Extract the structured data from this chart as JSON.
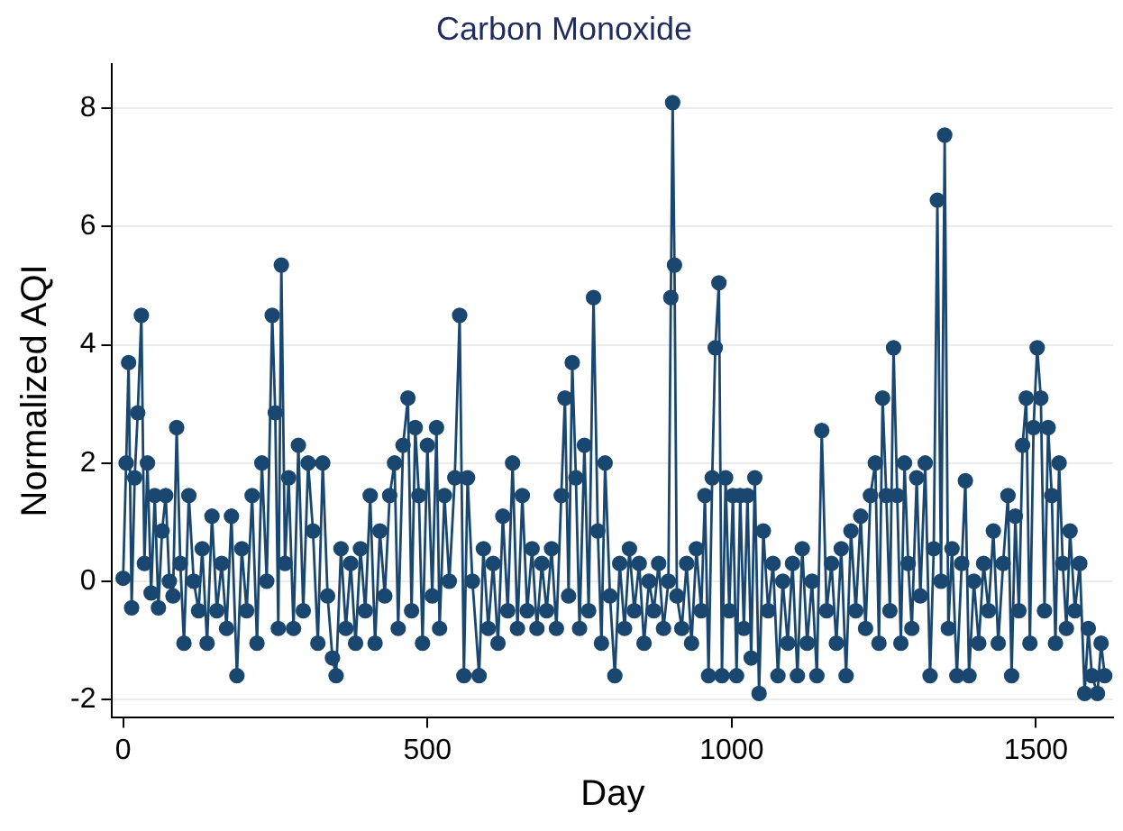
{
  "chart_data": {
    "type": "line",
    "title": "Carbon Monoxide",
    "xlabel": "Day",
    "ylabel": "Normalized AQI",
    "xlim": [
      -18,
      1627
    ],
    "xticks": [
      0,
      500,
      1000,
      1500
    ],
    "ylim": [
      -2.3,
      8.75
    ],
    "yticks": [
      -2,
      0,
      2,
      4,
      6,
      8
    ],
    "grid": "y",
    "legend": false,
    "marker": "circle",
    "line_style": "solid",
    "series": [
      {
        "color": "#1a476f",
        "x": [
          0,
          5,
          9,
          14,
          19,
          24,
          30,
          35,
          40,
          46,
          52,
          58,
          64,
          70,
          76,
          82,
          88,
          94,
          100,
          108,
          116,
          124,
          130,
          138,
          146,
          154,
          162,
          170,
          178,
          187,
          195,
          203,
          212,
          220,
          228,
          236,
          245,
          250,
          255,
          260,
          266,
          272,
          280,
          288,
          296,
          304,
          312,
          320,
          328,
          336,
          344,
          350,
          358,
          366,
          374,
          382,
          390,
          398,
          406,
          414,
          422,
          430,
          438,
          446,
          452,
          460,
          468,
          474,
          480,
          486,
          492,
          500,
          508,
          515,
          520,
          528,
          536,
          545,
          553,
          560,
          566,
          574,
          585,
          592,
          600,
          608,
          616,
          624,
          632,
          640,
          648,
          656,
          664,
          672,
          680,
          688,
          696,
          704,
          712,
          720,
          726,
          732,
          738,
          744,
          750,
          758,
          765,
          773,
          780,
          786,
          792,
          800,
          808,
          816,
          824,
          832,
          840,
          848,
          856,
          864,
          872,
          880,
          888,
          896,
          900,
          903,
          906,
          910,
          918,
          926,
          934,
          942,
          950,
          956,
          962,
          968,
          973,
          979,
          984,
          990,
          996,
          1002,
          1008,
          1014,
          1020,
          1026,
          1032,
          1038,
          1045,
          1052,
          1060,
          1068,
          1076,
          1084,
          1092,
          1100,
          1108,
          1116,
          1124,
          1132,
          1140,
          1148,
          1156,
          1164,
          1172,
          1180,
          1188,
          1196,
          1204,
          1212,
          1220,
          1228,
          1236,
          1242,
          1248,
          1254,
          1260,
          1266,
          1272,
          1278,
          1284,
          1290,
          1296,
          1304,
          1310,
          1318,
          1326,
          1332,
          1338,
          1344,
          1350,
          1356,
          1362,
          1370,
          1378,
          1384,
          1390,
          1398,
          1406,
          1414,
          1422,
          1430,
          1438,
          1446,
          1454,
          1460,
          1466,
          1472,
          1478,
          1484,
          1490,
          1496,
          1502,
          1508,
          1514,
          1520,
          1526,
          1532,
          1538,
          1544,
          1550,
          1556,
          1564,
          1572,
          1580,
          1586,
          1592,
          1601,
          1607,
          1613
        ],
        "values": [
          0.05,
          2.0,
          3.7,
          -0.45,
          1.75,
          2.85,
          4.5,
          0.3,
          2.0,
          -0.2,
          1.45,
          -0.45,
          0.85,
          1.45,
          0.0,
          -0.25,
          2.6,
          0.3,
          -1.05,
          1.45,
          0.0,
          -0.5,
          0.55,
          -1.05,
          1.1,
          -0.5,
          0.3,
          -0.8,
          1.1,
          -1.6,
          0.55,
          -0.5,
          1.45,
          -1.05,
          2.0,
          0.0,
          4.5,
          2.85,
          -0.8,
          5.35,
          0.3,
          1.75,
          -0.8,
          2.3,
          -0.5,
          2.0,
          0.85,
          -1.05,
          2.0,
          -0.25,
          -1.3,
          -1.6,
          0.55,
          -0.8,
          0.3,
          -1.05,
          0.55,
          -0.5,
          1.45,
          -1.05,
          0.85,
          -0.25,
          1.45,
          2.0,
          -0.8,
          2.3,
          3.1,
          -0.5,
          2.6,
          1.45,
          -1.05,
          2.3,
          -0.25,
          2.6,
          -0.8,
          1.45,
          0.0,
          1.75,
          4.5,
          -1.6,
          1.75,
          0.0,
          -1.6,
          0.55,
          -0.8,
          0.3,
          -1.05,
          1.1,
          -0.5,
          2.0,
          -0.8,
          1.45,
          -0.5,
          0.55,
          -0.8,
          0.3,
          -0.5,
          0.55,
          -0.8,
          1.45,
          3.1,
          -0.25,
          3.7,
          1.75,
          -0.8,
          2.3,
          -0.5,
          4.8,
          0.85,
          -1.05,
          2.0,
          -0.25,
          -1.6,
          0.3,
          -0.8,
          0.55,
          -0.5,
          0.3,
          -1.05,
          0.0,
          -0.5,
          0.3,
          -0.8,
          0.0,
          4.8,
          8.1,
          5.35,
          -0.25,
          -0.8,
          0.3,
          -1.05,
          0.55,
          -0.5,
          1.45,
          -1.6,
          1.75,
          3.95,
          5.05,
          -1.6,
          1.75,
          -0.5,
          1.45,
          -1.6,
          1.45,
          -0.8,
          1.45,
          -1.3,
          1.75,
          -1.9,
          0.85,
          -0.5,
          0.3,
          -1.6,
          0.0,
          -1.05,
          0.3,
          -1.6,
          0.55,
          -1.05,
          0.0,
          -1.6,
          2.55,
          -0.5,
          0.3,
          -1.05,
          0.55,
          -1.6,
          0.85,
          -0.5,
          1.1,
          -0.8,
          1.45,
          2.0,
          -1.05,
          3.1,
          1.45,
          -0.5,
          3.95,
          1.45,
          -1.05,
          2.0,
          0.3,
          -0.8,
          1.75,
          -0.25,
          2.0,
          -1.6,
          0.55,
          6.45,
          0.0,
          7.55,
          -0.8,
          0.55,
          -1.6,
          0.3,
          1.7,
          -1.6,
          0.0,
          -1.05,
          0.3,
          -0.5,
          0.85,
          -1.05,
          0.3,
          1.45,
          -1.6,
          1.1,
          -0.5,
          2.3,
          3.1,
          -1.05,
          2.6,
          3.95,
          3.1,
          -0.5,
          2.6,
          1.45,
          -1.05,
          2.0,
          0.3,
          -0.8,
          0.85,
          -0.5,
          0.3,
          -1.9,
          -0.8,
          -1.6,
          -1.9,
          -1.05,
          -1.6
        ]
      }
    ]
  }
}
